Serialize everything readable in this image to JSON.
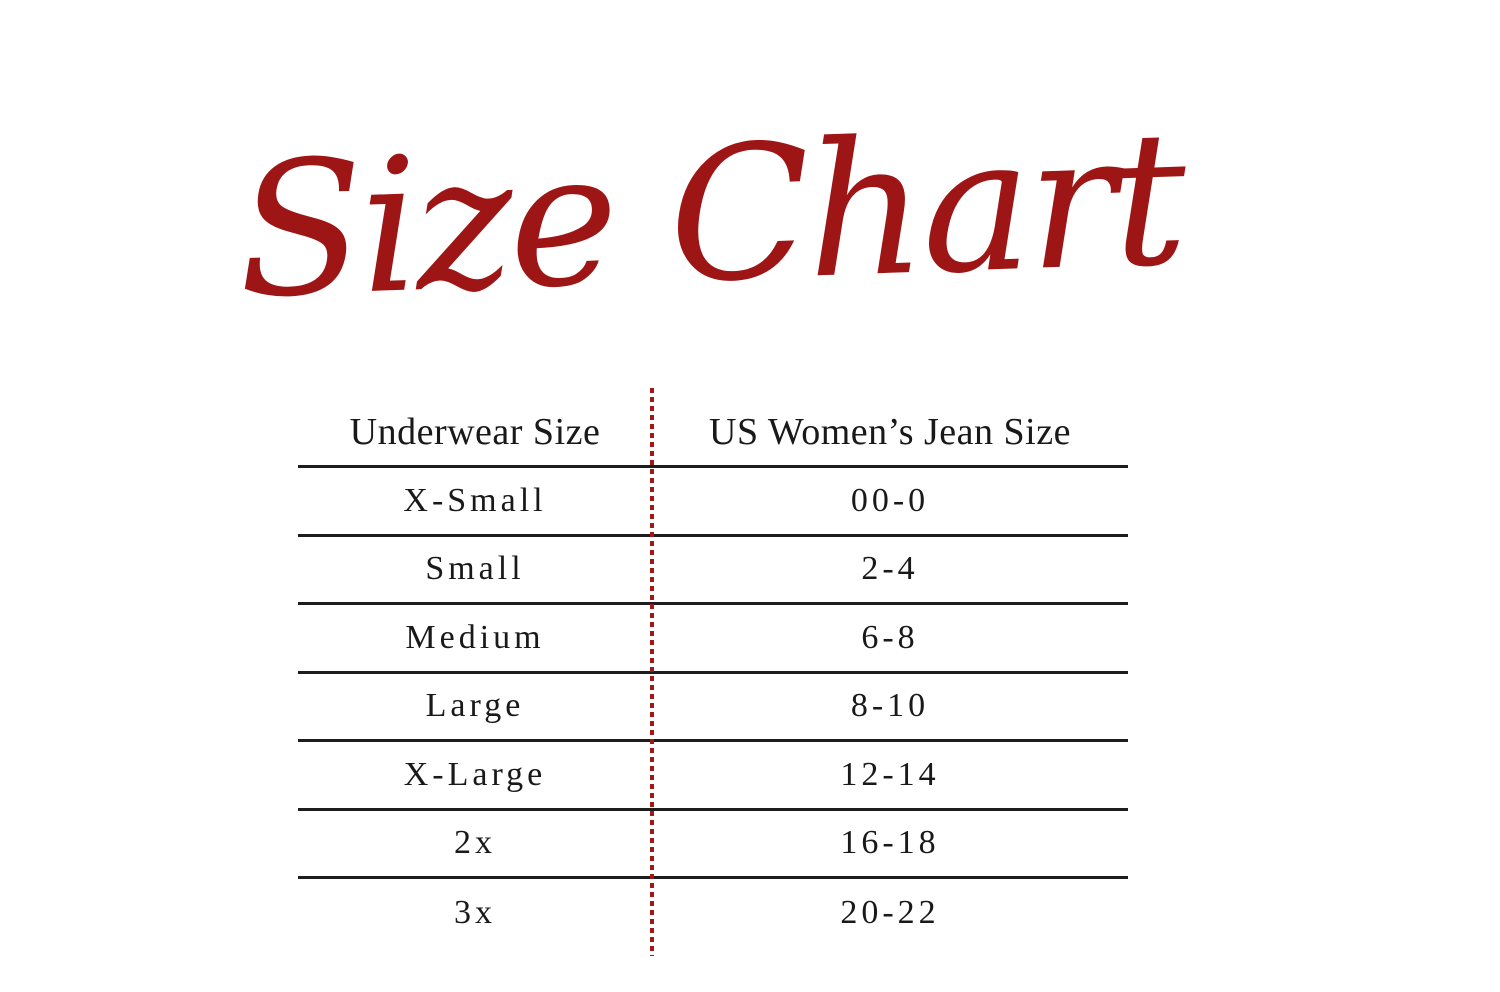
{
  "page": {
    "title_script": "Size Chart"
  },
  "colors": {
    "accent_red": "#9e1515",
    "divider_red": "#a11818",
    "line_black": "#1d1d1d",
    "text_black": "#191919",
    "background": "#ffffff"
  },
  "size_table": {
    "headers": {
      "col1": "Underwear Size",
      "col2": "US Women’s Jean Size"
    },
    "rows": [
      {
        "underwear": "X-Small",
        "jean": "00-0"
      },
      {
        "underwear": "Small",
        "jean": "2-4"
      },
      {
        "underwear": "Medium",
        "jean": "6-8"
      },
      {
        "underwear": "Large",
        "jean": "8-10"
      },
      {
        "underwear": "X-Large",
        "jean": "12-14"
      },
      {
        "underwear": "2x",
        "jean": "16-18"
      },
      {
        "underwear": "3x",
        "jean": "20-22"
      }
    ]
  },
  "chart_data": {
    "type": "table",
    "title": "Size Chart",
    "columns": [
      "Underwear Size",
      "US Women’s Jean Size"
    ],
    "rows": [
      [
        "X-Small",
        "00-0"
      ],
      [
        "Small",
        "2-4"
      ],
      [
        "Medium",
        "6-8"
      ],
      [
        "Large",
        "8-10"
      ],
      [
        "X-Large",
        "12-14"
      ],
      [
        "2x",
        "16-18"
      ],
      [
        "3x",
        "20-22"
      ]
    ],
    "layout": {
      "column_divider": "red dotted vertical line",
      "row_rules": "black horizontal lines, none under last row"
    }
  }
}
